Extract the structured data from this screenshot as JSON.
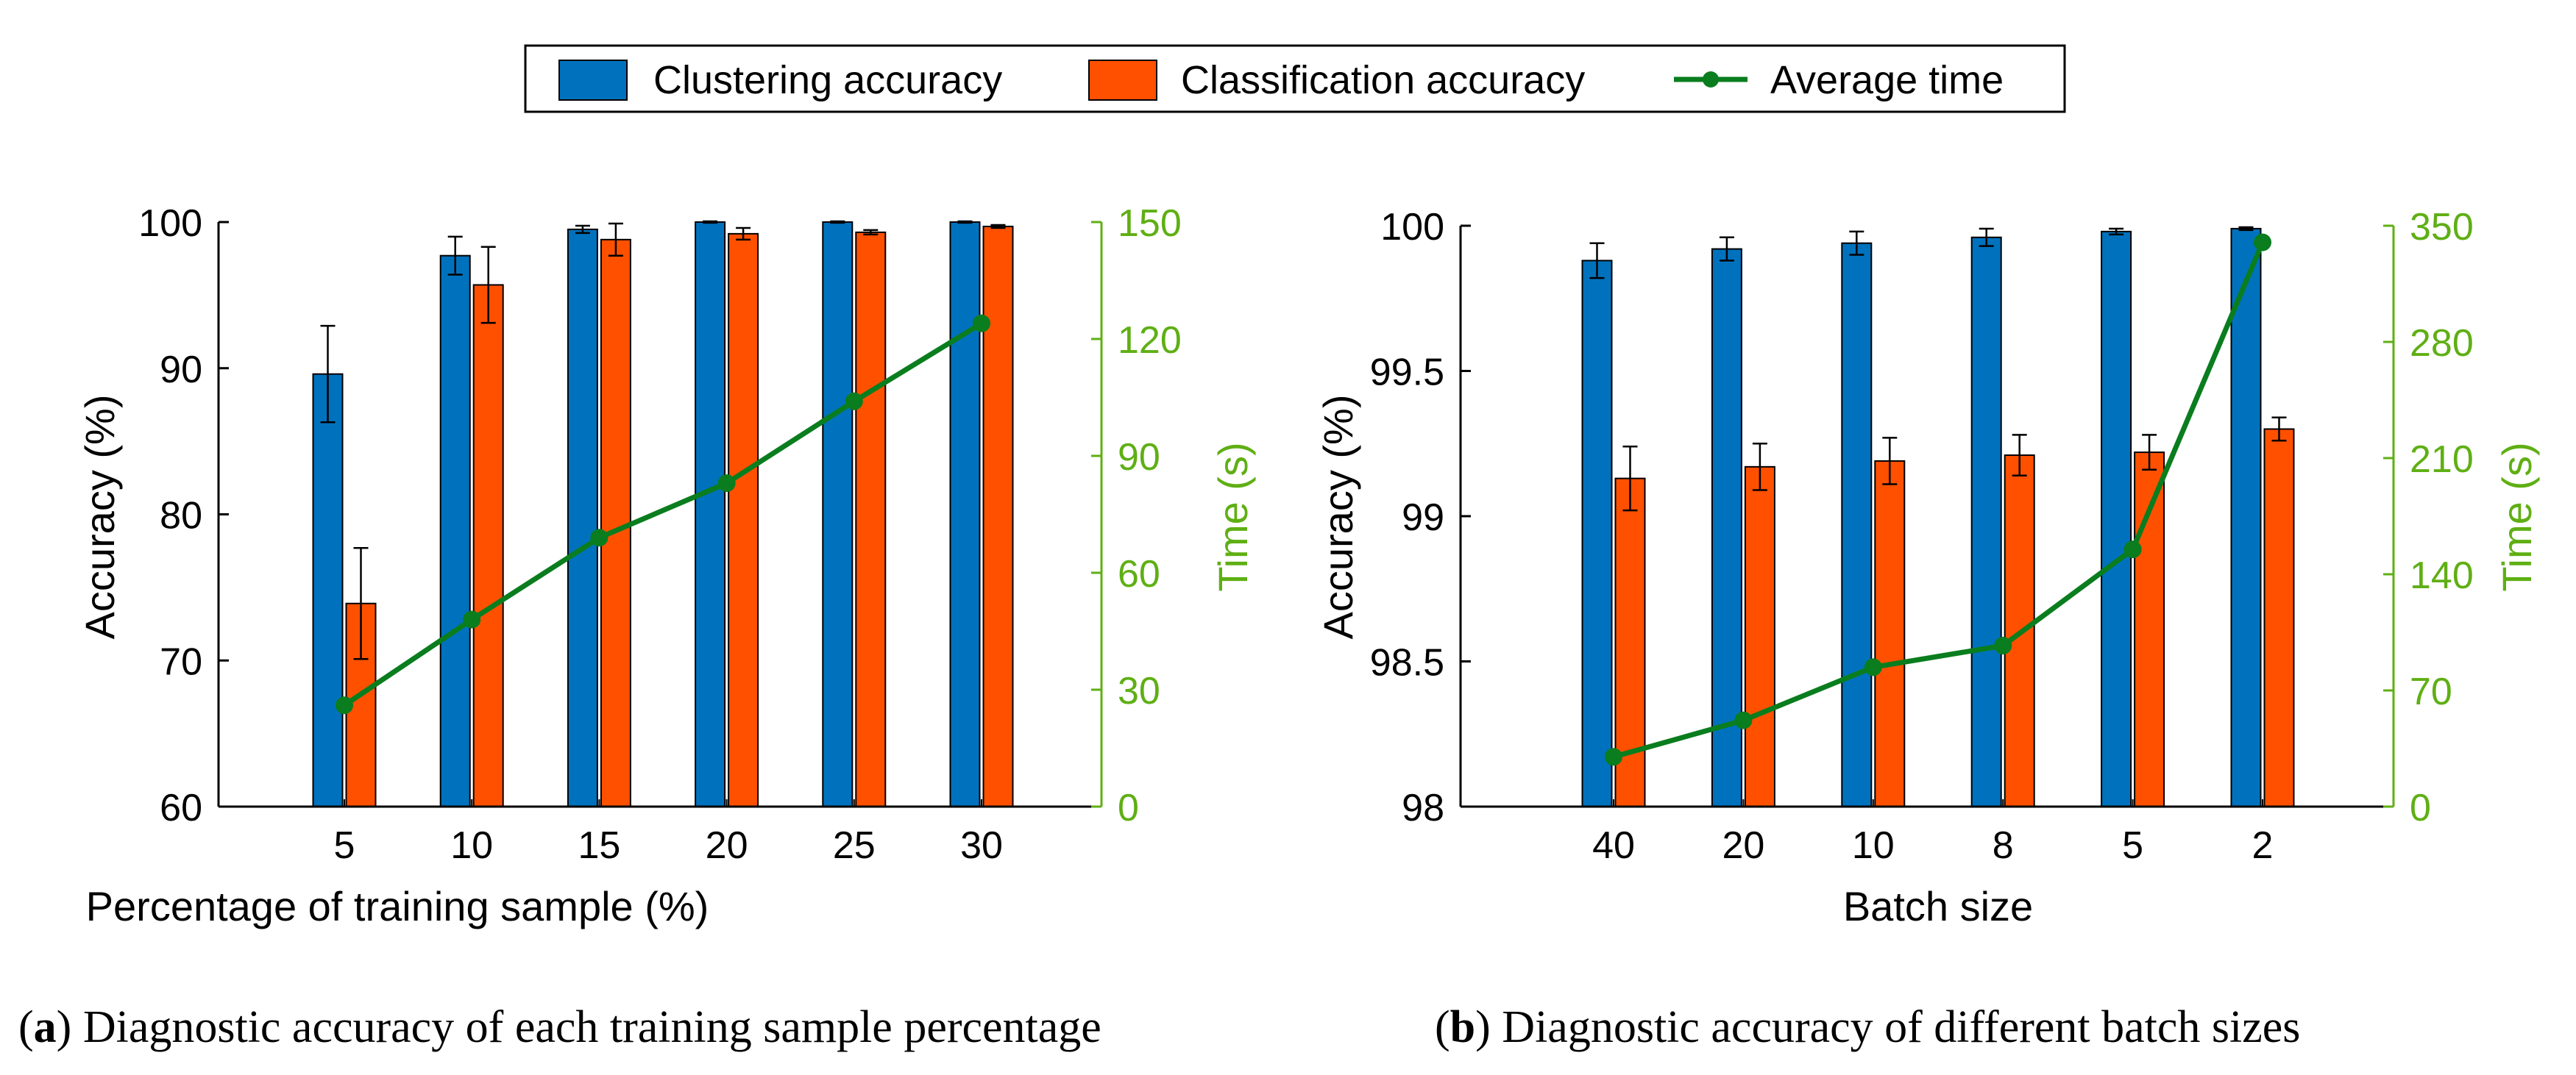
{
  "legend": {
    "items": [
      {
        "label": "Clustering accuracy",
        "kind": "bar",
        "color": "#0072BD"
      },
      {
        "label": "Classification accuracy",
        "kind": "bar",
        "color": "#FF5000"
      },
      {
        "label": "Average time",
        "kind": "line",
        "color": "#008000"
      }
    ]
  },
  "colors": {
    "clustering": "#0072BD",
    "classification": "#FF5000",
    "time_line": "#0A7D1E",
    "time_axis": "#5FAF14",
    "axis": "#000000"
  },
  "chart_data": [
    {
      "type": "bar",
      "id": "a",
      "caption_label": "a",
      "caption_text": "Diagnostic accuracy of each training sample percentage",
      "categories": [
        "5",
        "10",
        "15",
        "20",
        "25",
        "30"
      ],
      "xlabel": "Percentage of training sample (%)",
      "ylabel": "Accuracy (%)",
      "ylim": [
        60,
        100
      ],
      "yticks": [
        60,
        70,
        80,
        90,
        100
      ],
      "ytick_labels": [
        "60",
        "70",
        "80",
        "90",
        "100"
      ],
      "y2label": "Time (s)",
      "y2lim": [
        0,
        150
      ],
      "y2ticks": [
        0,
        30,
        60,
        90,
        120,
        150
      ],
      "y2tick_labels": [
        "0",
        "30",
        "60",
        "90",
        "120",
        "150"
      ],
      "series": [
        {
          "name": "Clustering accuracy",
          "kind": "bar",
          "values": [
            89.6,
            97.7,
            99.5,
            100.0,
            100.0,
            100.0
          ],
          "errors": [
            3.3,
            1.3,
            0.25,
            0.05,
            0.05,
            0.05
          ]
        },
        {
          "name": "Classification accuracy",
          "kind": "bar",
          "values": [
            73.9,
            95.7,
            98.8,
            99.2,
            99.3,
            99.7
          ],
          "errors": [
            3.8,
            2.6,
            1.1,
            0.4,
            0.15,
            0.1
          ]
        },
        {
          "name": "Average time",
          "kind": "line",
          "axis": "right",
          "values": [
            26,
            48,
            69,
            83,
            104,
            124
          ]
        }
      ]
    },
    {
      "type": "bar",
      "id": "b",
      "caption_label": "b",
      "caption_text": "Diagnostic accuracy of different batch sizes",
      "categories": [
        "40",
        "20",
        "10",
        "8",
        "5",
        "2"
      ],
      "xlabel": "Batch size",
      "ylabel": "Accuracy (%)",
      "ylim": [
        98,
        100
      ],
      "yticks": [
        98,
        98.5,
        99,
        99.5,
        100
      ],
      "ytick_labels": [
        "98",
        "98.5",
        "99",
        "99.5",
        "100"
      ],
      "y2label": "Time (s)",
      "y2lim": [
        0,
        350
      ],
      "y2ticks": [
        0,
        70,
        140,
        210,
        280,
        350
      ],
      "y2tick_labels": [
        "0",
        "70",
        "140",
        "210",
        "280",
        "350"
      ],
      "series": [
        {
          "name": "Clustering accuracy",
          "kind": "bar",
          "values": [
            99.88,
            99.92,
            99.94,
            99.96,
            99.98,
            99.99
          ],
          "errors": [
            0.06,
            0.04,
            0.04,
            0.03,
            0.01,
            0.005
          ]
        },
        {
          "name": "Classification accuracy",
          "kind": "bar",
          "values": [
            99.13,
            99.17,
            99.19,
            99.21,
            99.22,
            99.3
          ],
          "errors": [
            0.11,
            0.08,
            0.08,
            0.07,
            0.06,
            0.04
          ]
        },
        {
          "name": "Average time",
          "kind": "line",
          "axis": "right",
          "values": [
            30,
            52,
            84,
            97,
            155,
            340
          ]
        }
      ]
    }
  ]
}
